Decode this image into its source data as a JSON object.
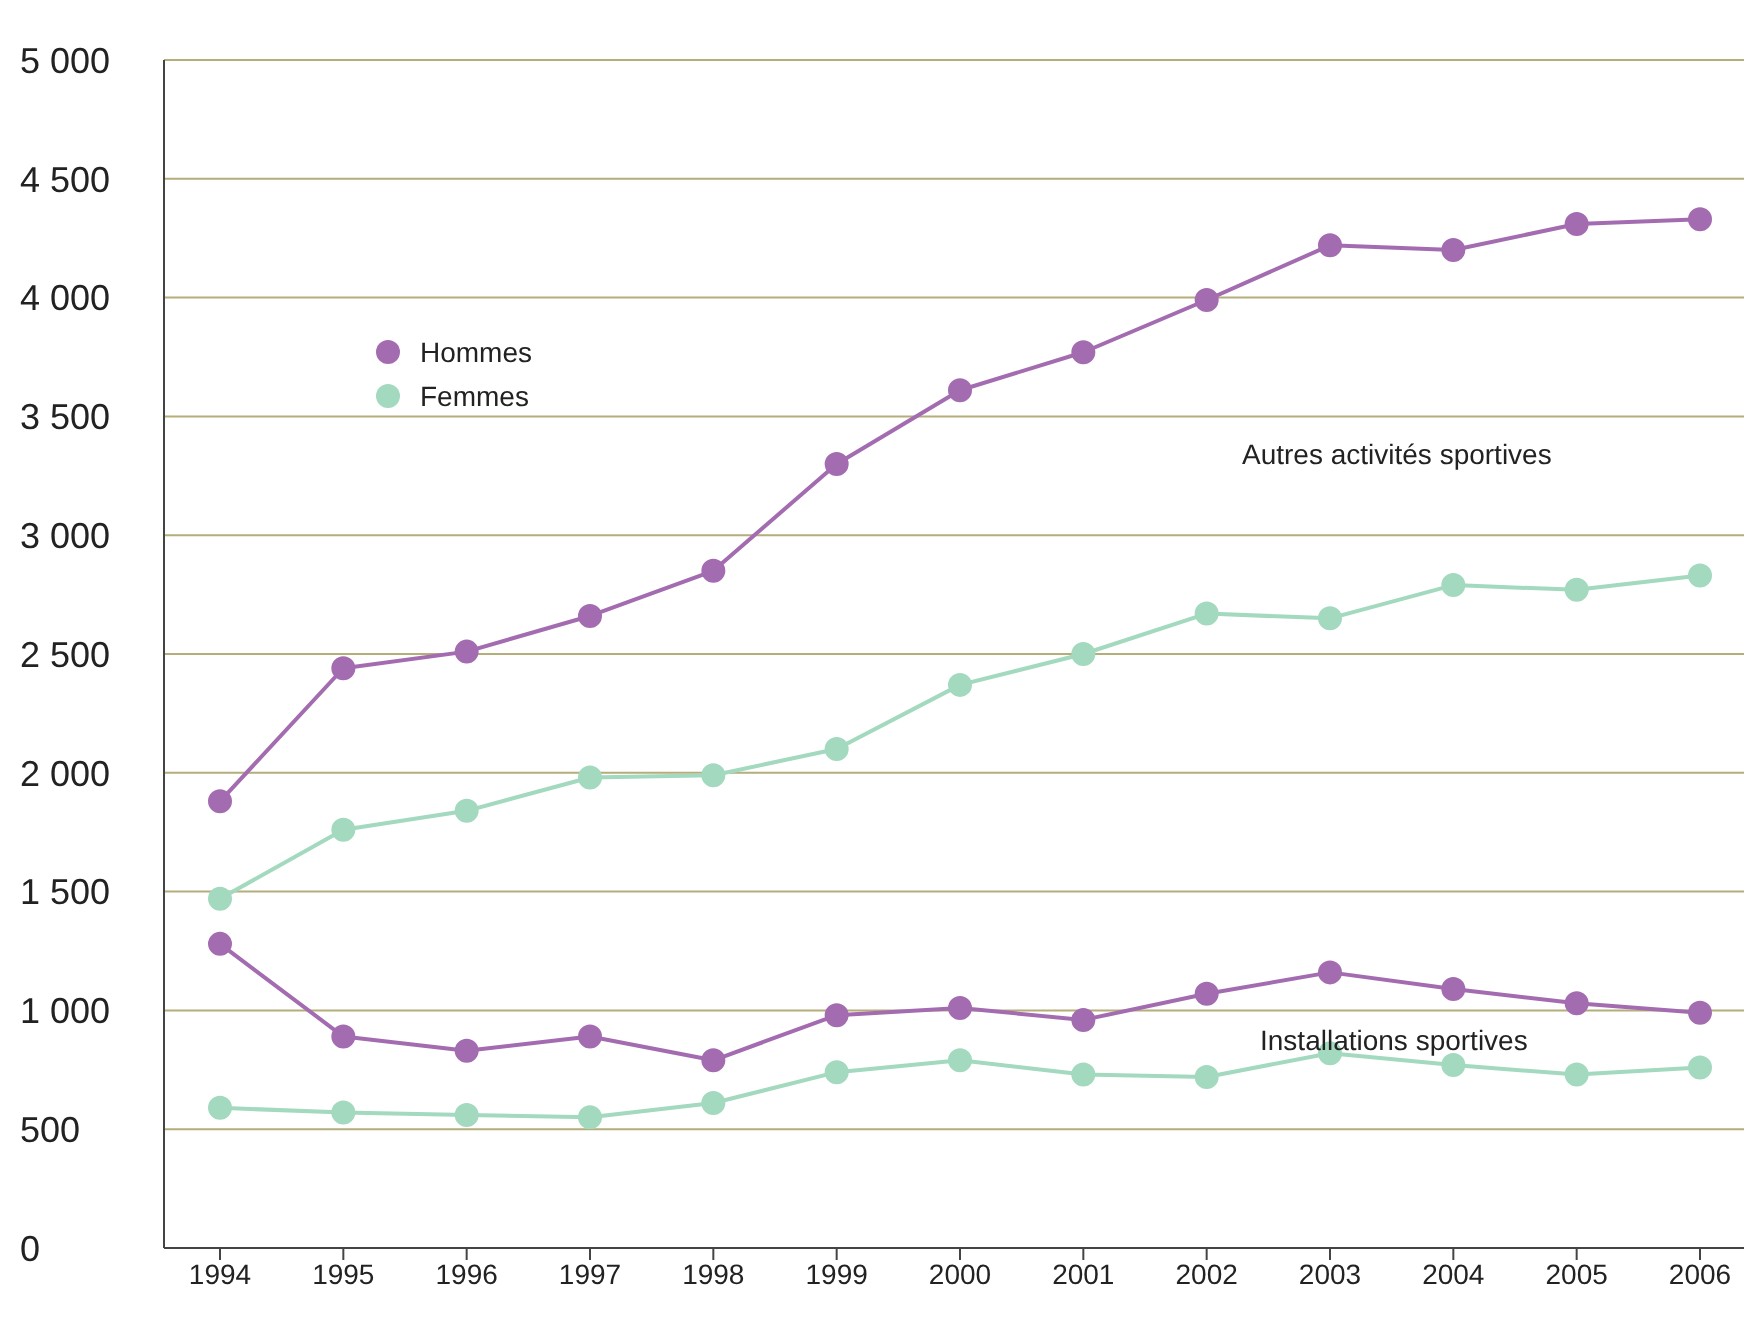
{
  "chart_data": {
    "type": "line",
    "categories": [
      "1994",
      "1995",
      "1996",
      "1997",
      "1998",
      "1999",
      "2000",
      "2001",
      "2002",
      "2003",
      "2004",
      "2005",
      "2006"
    ],
    "series": [
      {
        "name": "Hommes",
        "color": "#a46cb0",
        "values": [
          1880,
          2440,
          2510,
          2660,
          2850,
          3300,
          3610,
          3770,
          3990,
          4220,
          4200,
          4310,
          4330
        ]
      },
      {
        "name": "Femmes",
        "color": "#a3d9bf",
        "values": [
          1470,
          1760,
          1840,
          1980,
          1990,
          2100,
          2370,
          2500,
          2670,
          2650,
          2790,
          2770,
          2830
        ]
      },
      {
        "color": "#a46cb0",
        "values": [
          1280,
          890,
          830,
          890,
          790,
          980,
          1010,
          960,
          1070,
          1160,
          1090,
          1030,
          990
        ]
      },
      {
        "color": "#a3d9bf",
        "values": [
          590,
          570,
          560,
          550,
          610,
          740,
          790,
          730,
          720,
          820,
          770,
          730,
          760
        ]
      }
    ],
    "ylim": [
      0,
      5000
    ],
    "yticks": [
      0,
      500,
      {
        "value": 1000,
        "label": "1 000"
      },
      {
        "value": 1500,
        "label": "1 500"
      },
      {
        "value": 2000,
        "label": "2 000"
      },
      {
        "value": 2500,
        "label": "2 500"
      },
      {
        "value": 3000,
        "label": "3 000"
      },
      {
        "value": 3500,
        "label": "3 500"
      },
      {
        "value": 4000,
        "label": "4 000"
      },
      {
        "value": 4500,
        "label": "4 500"
      },
      {
        "value": 5000,
        "label": "5 000"
      }
    ],
    "grid": "y",
    "legend": "top left",
    "marker": "circle",
    "line_style": "solid",
    "annotations": [
      "Autres activités sportives",
      "Installations sportives"
    ]
  }
}
